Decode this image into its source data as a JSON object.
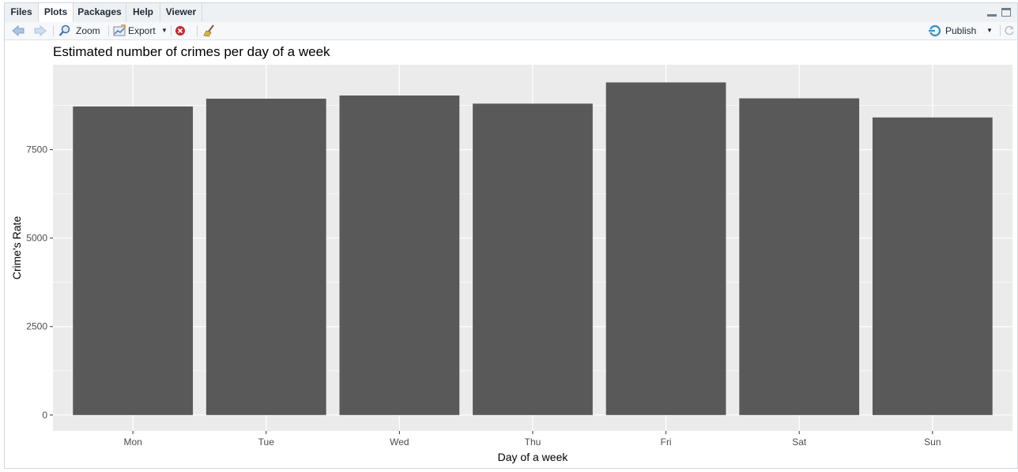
{
  "tabs": [
    {
      "label": "Files"
    },
    {
      "label": "Plots"
    },
    {
      "label": "Packages"
    },
    {
      "label": "Help"
    },
    {
      "label": "Viewer"
    }
  ],
  "toolbar": {
    "zoom_label": "Zoom",
    "export_label": "Export",
    "publish_label": "Publish"
  },
  "chart_data": {
    "type": "bar",
    "title": "Estimated number of crimes per day of a week",
    "xlabel": "Day of a week",
    "ylabel": "Crime's Rate",
    "categories": [
      "Mon",
      "Tue",
      "Wed",
      "Thu",
      "Fri",
      "Sat",
      "Sun"
    ],
    "values": [
      8720,
      8940,
      9030,
      8800,
      9400,
      8950,
      8410
    ],
    "ylim": [
      -450,
      9900
    ],
    "yticks": [
      0,
      2500,
      5000,
      7500
    ],
    "ytick_labels": [
      "0",
      "2500",
      "5000",
      "7500"
    ],
    "grid": true,
    "colors": {
      "bar": "#595959",
      "panel": "#ebebeb",
      "grid": "#ffffff"
    }
  }
}
